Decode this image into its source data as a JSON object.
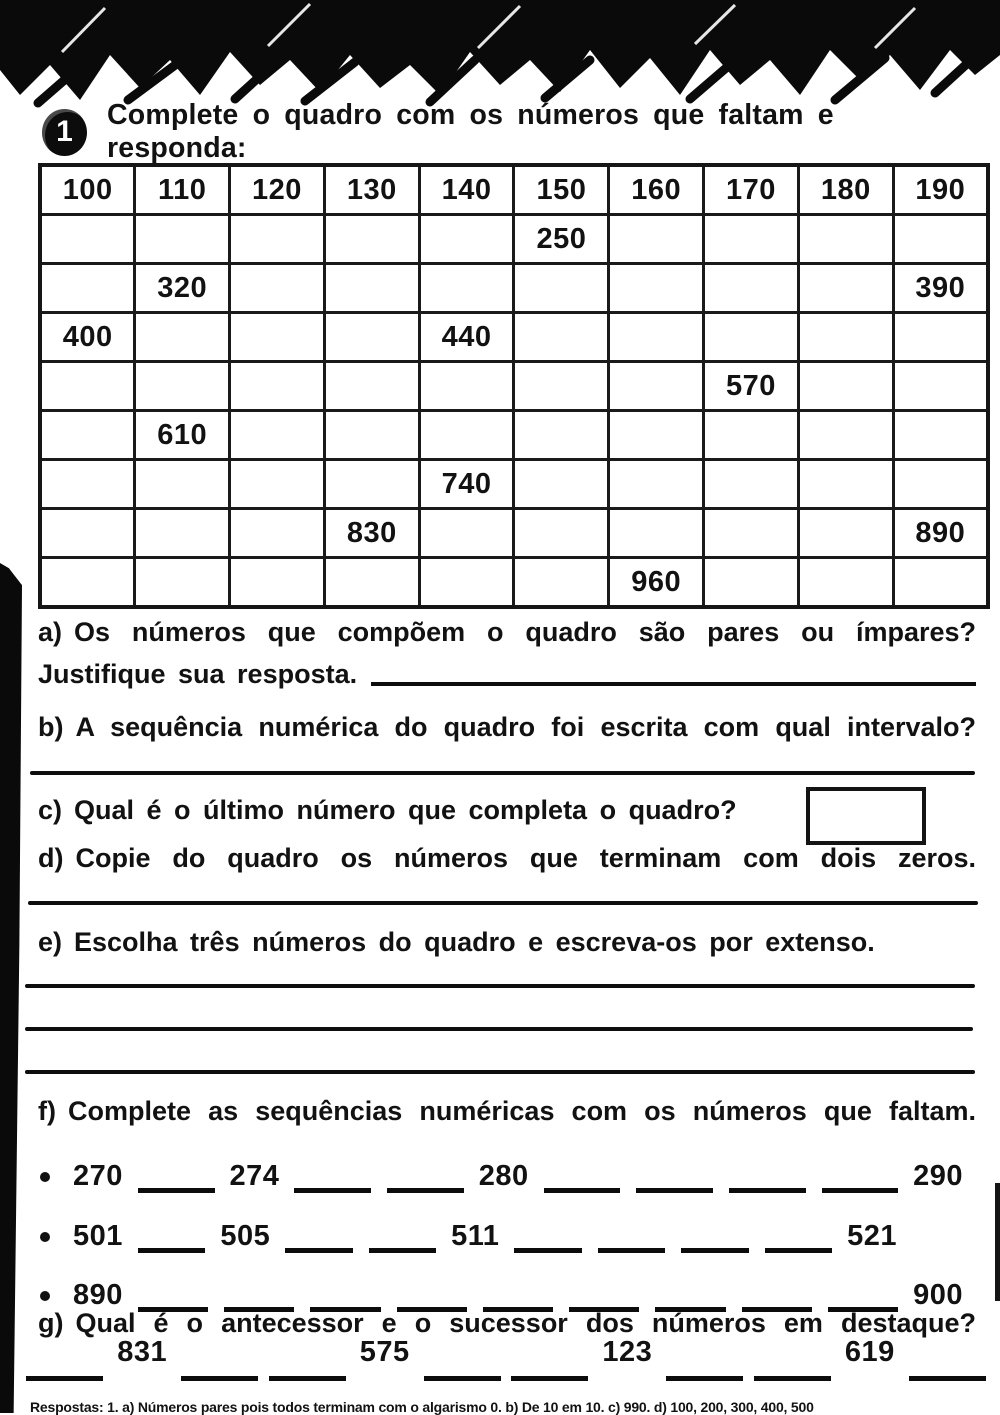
{
  "exercise": {
    "number": "1",
    "title": "Complete o quadro com os números que faltam e responda:"
  },
  "table": {
    "rows": [
      [
        "100",
        "110",
        "120",
        "130",
        "140",
        "150",
        "160",
        "170",
        "180",
        "190"
      ],
      [
        "",
        "",
        "",
        "",
        "",
        "250",
        "",
        "",
        "",
        ""
      ],
      [
        "",
        "320",
        "",
        "",
        "",
        "",
        "",
        "",
        "",
        "390"
      ],
      [
        "400",
        "",
        "",
        "",
        "440",
        "",
        "",
        "",
        "",
        ""
      ],
      [
        "",
        "",
        "",
        "",
        "",
        "",
        "",
        "570",
        "",
        ""
      ],
      [
        "",
        "610",
        "",
        "",
        "",
        "",
        "",
        "",
        "",
        ""
      ],
      [
        "",
        "",
        "",
        "",
        "740",
        "",
        "",
        "",
        "",
        ""
      ],
      [
        "",
        "",
        "",
        "830",
        "",
        "",
        "",
        "",
        "",
        "890"
      ],
      [
        "",
        "",
        "",
        "",
        "",
        "",
        "960",
        "",
        "",
        ""
      ]
    ]
  },
  "questions": {
    "a_label": "a)",
    "a_text": "Os números que compõem o quadro são pares ou ímpares?",
    "a_text2": "Justifique sua resposta.",
    "b_label": "b)",
    "b_text": "A sequência numérica do quadro foi escrita com qual intervalo?",
    "c_label": "c)",
    "c_text": "Qual é o último número que completa o quadro?",
    "d_label": "d)",
    "d_text": "Copie do quadro os números que terminam com dois zeros.",
    "e_label": "e)",
    "e_text": "Escolha três números do quadro e escreva-os por extenso.",
    "f_label": "f)",
    "f_text": "Complete as sequências numéricas com os números que faltam.",
    "g_label": "g)",
    "g_text": "Qual é o antecessor e o sucessor dos números em destaque?"
  },
  "sequences": [
    [
      "270",
      "",
      "274",
      "",
      "",
      "280",
      "",
      "",
      "",
      "",
      "290"
    ],
    [
      "501",
      "",
      "505",
      "",
      "",
      "511",
      "",
      "",
      "",
      "",
      "521"
    ],
    [
      "890",
      "",
      "",
      "",
      "",
      "",
      "",
      "",
      "",
      "",
      "900"
    ]
  ],
  "g_numbers": [
    "831",
    "575",
    "123",
    "619"
  ],
  "footer": {
    "answers_text": "Respostas: 1. a) Números pares pois todos terminam com o algarismo 0. b) De 10 em 10. c) 990. d) 100, 200, 300, 400, 500"
  },
  "colors": {
    "ink": "#111111",
    "paper": "#ffffff"
  }
}
